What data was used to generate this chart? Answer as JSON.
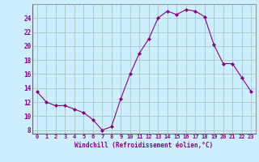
{
  "xlabel": "Windchill (Refroidissement éolien,°C)",
  "background_color": "#cceeff",
  "grid_color": "#aacccc",
  "line_color": "#880088",
  "marker_color": "#880088",
  "xlim": [
    -0.5,
    23.5
  ],
  "ylim": [
    7.5,
    26.0
  ],
  "yticks": [
    8,
    10,
    12,
    14,
    16,
    18,
    20,
    22,
    24
  ],
  "xticks": [
    0,
    1,
    2,
    3,
    4,
    5,
    6,
    7,
    8,
    9,
    10,
    11,
    12,
    13,
    14,
    15,
    16,
    17,
    18,
    19,
    20,
    21,
    22,
    23
  ],
  "hours": [
    0,
    1,
    2,
    3,
    4,
    5,
    6,
    7,
    8,
    9,
    10,
    11,
    12,
    13,
    14,
    15,
    16,
    17,
    18,
    19,
    20,
    21,
    22,
    23
  ],
  "values": [
    13.5,
    12.0,
    11.5,
    11.5,
    11.0,
    10.5,
    9.5,
    8.0,
    8.5,
    12.5,
    16.0,
    19.0,
    21.0,
    24.0,
    25.0,
    24.5,
    25.2,
    25.0,
    24.2,
    20.2,
    17.5,
    17.5,
    15.5,
    13.5
  ]
}
